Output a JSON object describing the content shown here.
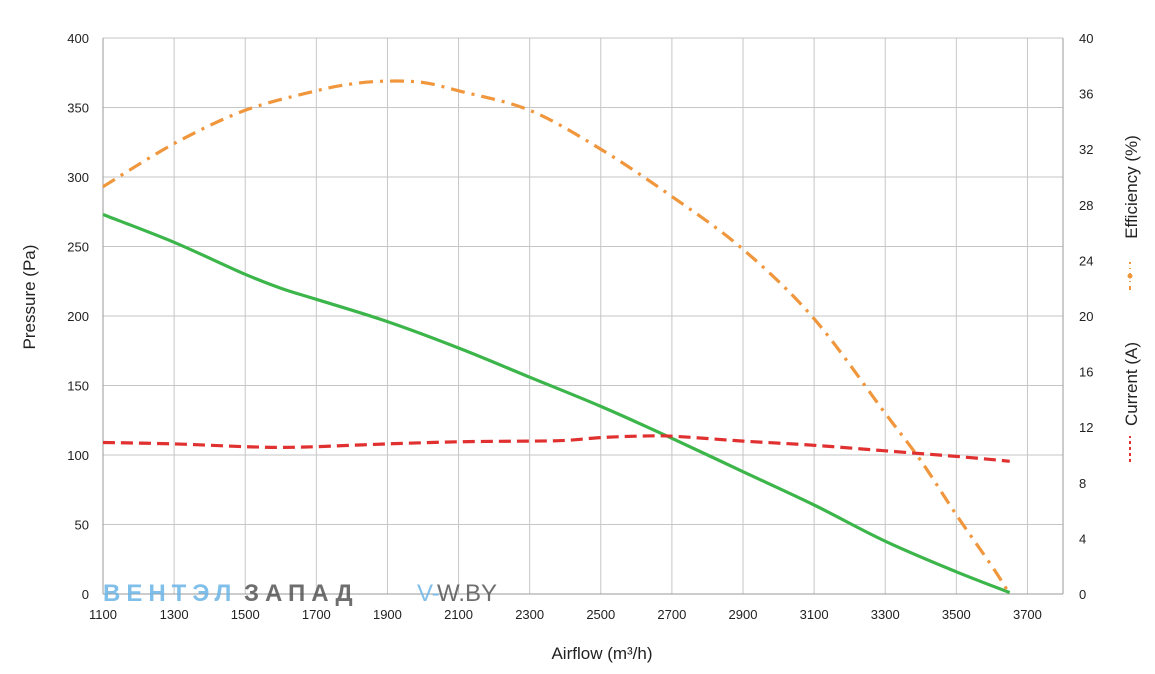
{
  "chart_data": {
    "type": "line",
    "xlabel": "Airflow (m³/h)",
    "ylabel": "Pressure (Pa)",
    "y2label_efficiency": "Efficiency (%)",
    "y2label_current": "Current (A)",
    "xlim": [
      1100,
      3800
    ],
    "ylim": [
      0,
      400
    ],
    "y2lim": [
      0,
      40
    ],
    "x_ticks": [
      "1100",
      "1300",
      "1500",
      "1700",
      "1900",
      "2100",
      "2300",
      "2500",
      "2700",
      "2900",
      "3100",
      "3300",
      "3500",
      "3700"
    ],
    "y_ticks": [
      "0",
      "50",
      "100",
      "150",
      "200",
      "250",
      "300",
      "350",
      "400"
    ],
    "y2_ticks": [
      "0",
      "4",
      "8",
      "12",
      "16",
      "20",
      "24",
      "28",
      "32",
      "36",
      "40"
    ],
    "grid": true,
    "legend": "right",
    "series": [
      {
        "key": "pressure",
        "axis": "left",
        "color": "#3cb54a",
        "style": "solid",
        "x": [
          1100,
          1300,
          1500,
          1600,
          1700,
          1900,
          2100,
          2300,
          2500,
          2700,
          2900,
          3100,
          3300,
          3500,
          3650
        ],
        "y": [
          273,
          253,
          230,
          220,
          212,
          196,
          177,
          156,
          135,
          112,
          88,
          64,
          38,
          16,
          1
        ]
      },
      {
        "key": "efficiency",
        "name": "Efficiency (%)",
        "axis": "right",
        "color": "#f0963c",
        "style": "dashdot",
        "x": [
          1100,
          1300,
          1500,
          1700,
          1800,
          1900,
          2000,
          2100,
          2300,
          2500,
          2700,
          2900,
          3100,
          3300,
          3400,
          3500,
          3600,
          3650
        ],
        "y": [
          29.3,
          32.4,
          34.8,
          36.2,
          36.7,
          36.9,
          36.8,
          36.2,
          34.8,
          32.0,
          28.6,
          24.8,
          19.8,
          13.0,
          9.6,
          5.7,
          2.0,
          0
        ]
      },
      {
        "key": "current",
        "name": "Current (A)",
        "axis": "right",
        "color": "#e03030",
        "style": "dashed",
        "x": [
          1100,
          1300,
          1500,
          1600,
          1700,
          1900,
          2100,
          2300,
          2400,
          2500,
          2600,
          2700,
          2900,
          3100,
          3300,
          3500,
          3650
        ],
        "y": [
          10.9,
          10.8,
          10.6,
          10.55,
          10.6,
          10.8,
          10.95,
          11.0,
          11.05,
          11.25,
          11.35,
          11.35,
          11.0,
          10.7,
          10.3,
          9.9,
          9.55
        ]
      }
    ]
  },
  "watermark": {
    "part1": "ВЕНТЭЛ",
    "part2": "ЗАПАД",
    "part3": "V-",
    "part4": "W.BY",
    "color1": "#6ab4e6",
    "color2": "#555555"
  }
}
